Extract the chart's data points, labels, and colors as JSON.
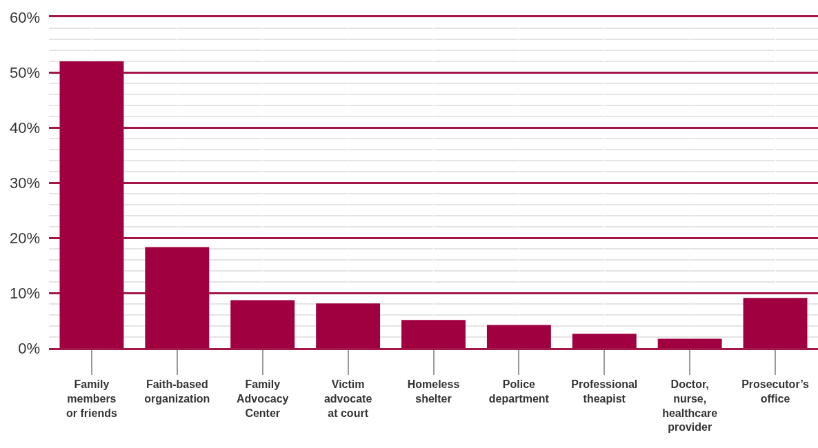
{
  "chart_data": {
    "type": "bar",
    "categories": [
      "Family\nmembers\nor friends",
      "Faith-based\norganization",
      "Family\nAdvocacy\nCenter",
      "Victim\nadvocate\nat court",
      "Homeless\nshelter",
      "Police\ndepartment",
      "Professional\ntheapist",
      "Doctor,\nnurse,\nhealthcare\nprovider",
      "Prosecutor’s\noffice"
    ],
    "values": [
      52,
      18.3,
      8.7,
      8.1,
      5.1,
      4.2,
      2.6,
      1.7,
      9.1
    ],
    "color": "#a0003f",
    "ylim": [
      0,
      60
    ],
    "yticks": [
      {
        "value": 0,
        "label": "0%"
      },
      {
        "value": 2,
        "label": null
      },
      {
        "value": 4,
        "label": null
      },
      {
        "value": 6,
        "label": null
      },
      {
        "value": 8,
        "label": null
      },
      {
        "value": 10,
        "label": "10%"
      },
      {
        "value": 12,
        "label": null
      },
      {
        "value": 14,
        "label": null
      },
      {
        "value": 16,
        "label": null
      },
      {
        "value": 18,
        "label": null
      },
      {
        "value": 20,
        "label": "20%"
      },
      {
        "value": 22,
        "label": null
      },
      {
        "value": 24,
        "label": null
      },
      {
        "value": 26,
        "label": null
      },
      {
        "value": 28,
        "label": null
      },
      {
        "value": 30,
        "label": "30%"
      },
      {
        "value": 32,
        "label": null
      },
      {
        "value": 34,
        "label": null
      },
      {
        "value": 36,
        "label": null
      },
      {
        "value": 38,
        "label": null
      },
      {
        "value": 40,
        "label": "40%"
      },
      {
        "value": 42,
        "label": null
      },
      {
        "value": 44,
        "label": null
      },
      {
        "value": 46,
        "label": null
      },
      {
        "value": 48,
        "label": null
      },
      {
        "value": 50,
        "label": "50%"
      },
      {
        "value": 52,
        "label": null
      },
      {
        "value": 54,
        "label": null
      },
      {
        "value": 56,
        "label": null
      },
      {
        "value": 58,
        "label": null
      },
      {
        "value": 60,
        "label": "60%"
      }
    ],
    "grid": true
  }
}
